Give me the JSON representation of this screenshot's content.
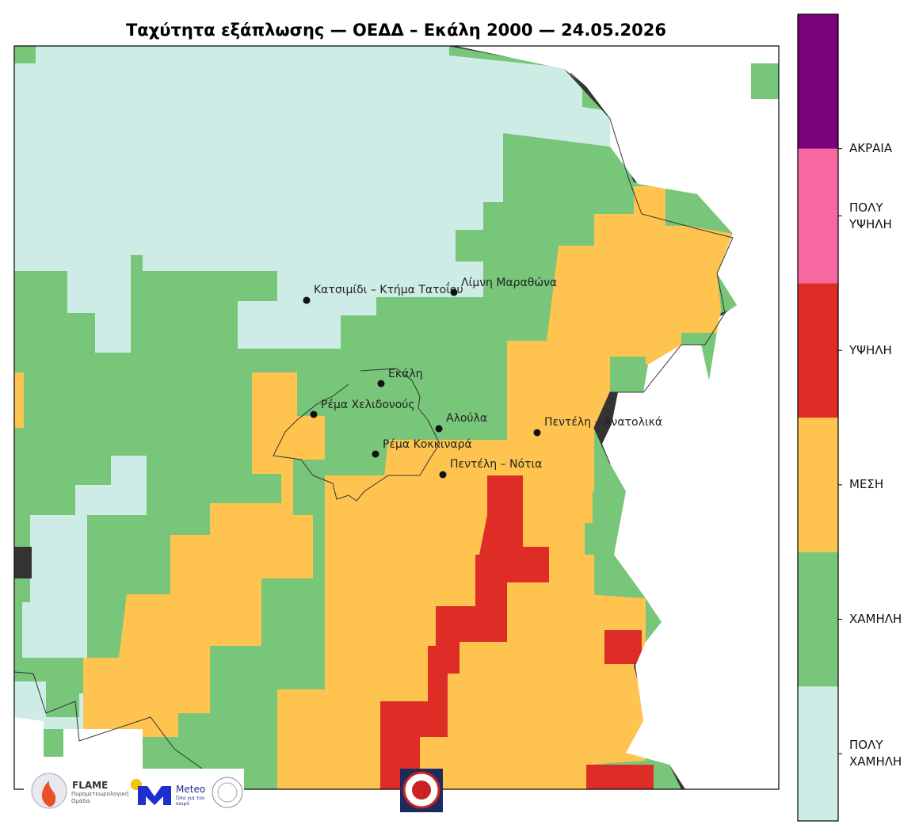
{
  "title": "Ταχύτητα εξάπλωσης — ΟΕΔΔ – Εκάλη 2000 — 24.05.2026",
  "places": [
    {
      "name": "Κατσιμίδι – Κτήμα Τατοΐου"
    },
    {
      "name": "Λίμνη Μαραθώνα"
    },
    {
      "name": "Εκάλη"
    },
    {
      "name": "Ρέμα Χελιδονούς"
    },
    {
      "name": "Αλούλα"
    },
    {
      "name": "Πεντέλη – Ανατολικά"
    },
    {
      "name": "Ρέμα Κοκκιναρά"
    },
    {
      "name": "Πεντέλη – Νότια"
    }
  ],
  "legend": {
    "classes": [
      {
        "label": "ΠΟΛΥ ΧΑΜΗΛΗ",
        "color": "#cdece5"
      },
      {
        "label": "ΧΑΜΗΛΗ",
        "color": "#78c679"
      },
      {
        "label": "ΜΕΣΗ",
        "color": "#fec44f"
      },
      {
        "label": "ΥΨΗΛΗ",
        "color": "#de2d26"
      },
      {
        "label": "ΠΟΛΥ ΥΨΗΛΗ",
        "color": "#f768a1"
      },
      {
        "label": "ΑΚΡΑΙΑ",
        "color": "#7a0177"
      }
    ]
  },
  "logos": {
    "flame": "FLAME",
    "flame_sub": "Πυρομετεωρολογική Ομάδα",
    "meteo": "Meteo",
    "meteo_sub": "Όλα για τον καιρό"
  }
}
